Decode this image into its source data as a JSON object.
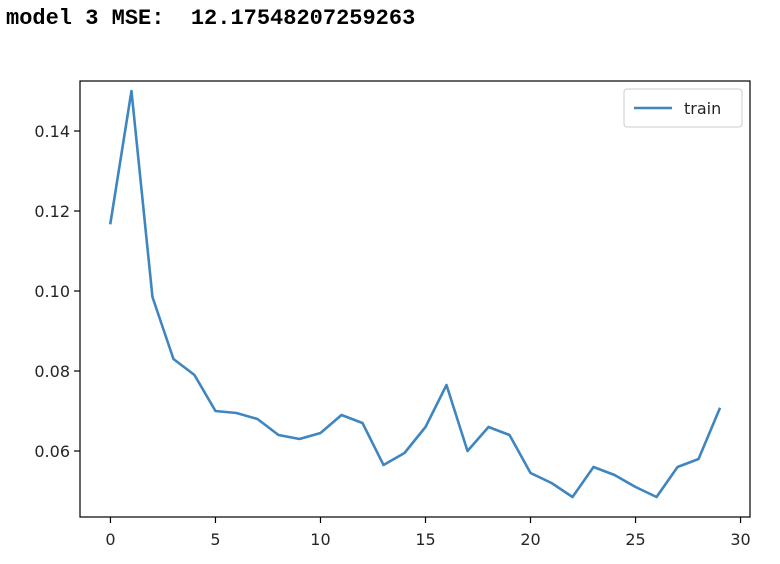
{
  "output": {
    "prefix": "model 3 MSE:",
    "value": "12.17548207259263"
  },
  "chart_data": {
    "type": "line",
    "title": "",
    "xlabel": "",
    "ylabel": "",
    "xlim": [
      -1.45,
      30.45
    ],
    "ylim": [
      0.0435,
      0.1525
    ],
    "x_ticks": [
      0,
      5,
      10,
      15,
      20,
      25,
      30
    ],
    "x_tick_labels": [
      "0",
      "5",
      "10",
      "15",
      "20",
      "25",
      "30"
    ],
    "y_ticks": [
      0.06,
      0.08,
      0.1,
      0.12,
      0.14
    ],
    "y_tick_labels": [
      "0.06",
      "0.08",
      "0.10",
      "0.12",
      "0.14"
    ],
    "grid": false,
    "legend_position": "top-right",
    "series": [
      {
        "name": "train",
        "color": "#3f86c0",
        "x": [
          0,
          1,
          2,
          3,
          4,
          5,
          6,
          7,
          8,
          9,
          10,
          11,
          12,
          13,
          14,
          15,
          16,
          17,
          18,
          19,
          20,
          21,
          22,
          23,
          24,
          25,
          26,
          27,
          28,
          29
        ],
        "values": [
          0.117,
          0.15,
          0.0985,
          0.083,
          0.079,
          0.07,
          0.0695,
          0.068,
          0.064,
          0.063,
          0.0645,
          0.069,
          0.067,
          0.0565,
          0.0595,
          0.066,
          0.0765,
          0.06,
          0.066,
          0.064,
          0.0545,
          0.052,
          0.0485,
          0.056,
          0.054,
          0.051,
          0.0485,
          0.056,
          0.058,
          0.0705
        ]
      }
    ]
  }
}
